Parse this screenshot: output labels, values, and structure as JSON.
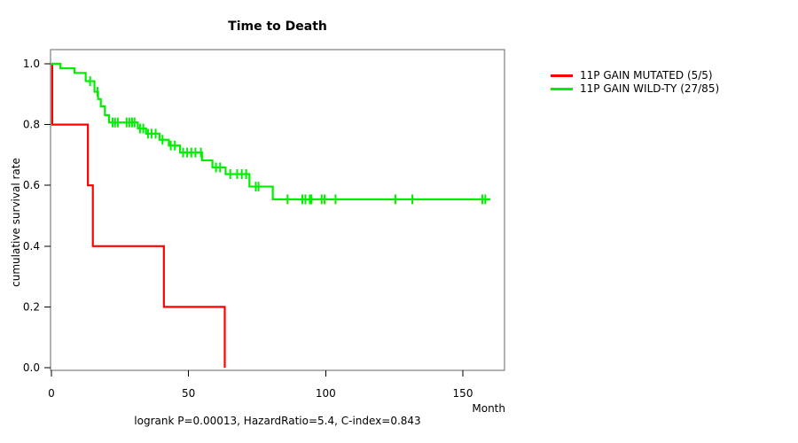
{
  "chart_data": {
    "type": "line",
    "subtype": "kaplan-meier-step",
    "title": "Time to Death",
    "xlabel": "Month",
    "ylabel": "cumulative survival rate",
    "footnote": "logrank P=0.00013, HazardRatio=5.4, C-index=0.843",
    "grid": false,
    "legend_position": "right-outside",
    "xlim": [
      0,
      165
    ],
    "ylim": [
      0,
      1.05
    ],
    "x_ticks": {
      "values": [
        0,
        50,
        100,
        150
      ],
      "labels": [
        "0",
        "50",
        "100",
        "150"
      ]
    },
    "y_ticks": {
      "values": [
        0,
        0.2,
        0.4,
        0.6,
        0.8,
        1.0
      ],
      "labels": [
        "0.0",
        "0.2",
        "0.4",
        "0.6",
        "0.8",
        "1.0"
      ]
    },
    "frame_color": "#666666",
    "tick_color": "#000000",
    "text_color": "#000000",
    "series": [
      {
        "name": "11P GAIN MUTATED (5/5)",
        "color": "#ff0000",
        "step_points": [
          [
            0,
            1.0
          ],
          [
            0.3,
            0.8
          ],
          [
            13.3,
            0.6
          ],
          [
            15.1,
            0.4
          ],
          [
            41,
            0.2
          ],
          [
            63.2,
            0.0
          ]
        ],
        "end_time": 63.2,
        "censor_times": []
      },
      {
        "name": "11P GAIN WILD-TY (27/85)",
        "color": "#00ee00",
        "step_points": [
          [
            0,
            1.0
          ],
          [
            3.3,
            0.985
          ],
          [
            8.4,
            0.97
          ],
          [
            12.5,
            0.943
          ],
          [
            15.7,
            0.908
          ],
          [
            17.0,
            0.884
          ],
          [
            18.0,
            0.86
          ],
          [
            19.5,
            0.831
          ],
          [
            21.0,
            0.807
          ],
          [
            31.5,
            0.787
          ],
          [
            34.5,
            0.77
          ],
          [
            39.4,
            0.75
          ],
          [
            42.8,
            0.731
          ],
          [
            46.9,
            0.708
          ],
          [
            54.9,
            0.682
          ],
          [
            58.7,
            0.659
          ],
          [
            63.5,
            0.637
          ],
          [
            72.2,
            0.596
          ],
          [
            80.7,
            0.554
          ]
        ],
        "end_time": 160,
        "censor_times": [
          14.1,
          16.8,
          22.3,
          23.2,
          24.2,
          27.4,
          28.4,
          29.4,
          30.3,
          32.3,
          33.5,
          35.2,
          36.5,
          38.0,
          40.5,
          43.5,
          45.0,
          48.0,
          49.5,
          51.0,
          52.5,
          54.5,
          60.0,
          61.5,
          65.2,
          67.7,
          69.4,
          71.0,
          74.5,
          75.5,
          86.1,
          91.5,
          92.6,
          94.2,
          94.8,
          98.5,
          99.6,
          103.6,
          125.4,
          131.6,
          157.1,
          158.2
        ]
      }
    ]
  }
}
